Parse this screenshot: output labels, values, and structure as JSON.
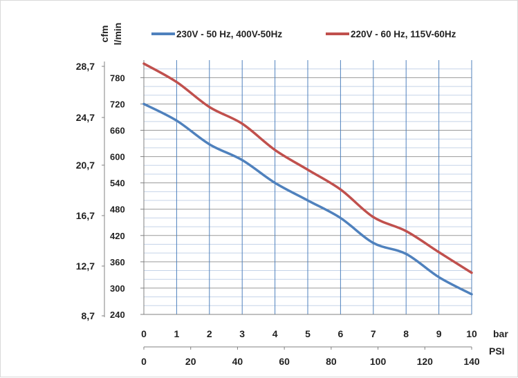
{
  "chart_data": {
    "type": "line",
    "legend": {
      "placement": "top",
      "entries": [
        {
          "label": "230V - 50 Hz, 400V-50Hz",
          "color": "#4f81bd"
        },
        {
          "label": "220V - 60 Hz, 115V-60Hz",
          "color": "#c0504d"
        }
      ]
    },
    "y_axis_left": {
      "unit": "cfm",
      "ticks": [
        "28,7",
        "24,7",
        "20,7",
        "16,7",
        "12,7",
        "8,7"
      ],
      "tick_values": [
        28.7,
        24.7,
        20.7,
        16.7,
        12.7,
        8.7
      ]
    },
    "y_axis_main": {
      "unit": "l/min",
      "ticks": [
        "780",
        "720",
        "660",
        "600",
        "540",
        "480",
        "420",
        "360",
        "300",
        "240"
      ],
      "tick_values": [
        780,
        720,
        660,
        600,
        540,
        480,
        420,
        360,
        300,
        240
      ],
      "ylim": [
        240,
        820
      ]
    },
    "x_axis_bar": {
      "unit": "bar",
      "ticks": [
        "0",
        "1",
        "2",
        "3",
        "4",
        "5",
        "6",
        "7",
        "8",
        "9",
        "10"
      ],
      "tick_values": [
        0,
        1,
        2,
        3,
        4,
        5,
        6,
        7,
        8,
        9,
        10
      ],
      "xlim": [
        0,
        10
      ]
    },
    "x_axis_psi": {
      "unit": "PSI",
      "ticks": [
        "0",
        "20",
        "40",
        "60",
        "80",
        "100",
        "120",
        "140"
      ],
      "tick_values": [
        0,
        20,
        40,
        60,
        80,
        100,
        120,
        140
      ]
    },
    "grid": true,
    "series": [
      {
        "name": "230V - 50 Hz, 400V-50Hz",
        "color": "#4f81bd",
        "x": [
          0,
          1,
          2,
          3,
          4,
          5,
          6,
          7,
          8,
          9,
          10
        ],
        "y": [
          720,
          682,
          628,
          592,
          540,
          500,
          460,
          403,
          378,
          325,
          286
        ]
      },
      {
        "name": "220V - 60 Hz, 115V-60Hz",
        "color": "#c0504d",
        "x": [
          0,
          1,
          2,
          3,
          4,
          5,
          6,
          7,
          8,
          9,
          10
        ],
        "y": [
          812,
          770,
          713,
          675,
          615,
          570,
          525,
          462,
          430,
          382,
          335
        ]
      }
    ]
  }
}
